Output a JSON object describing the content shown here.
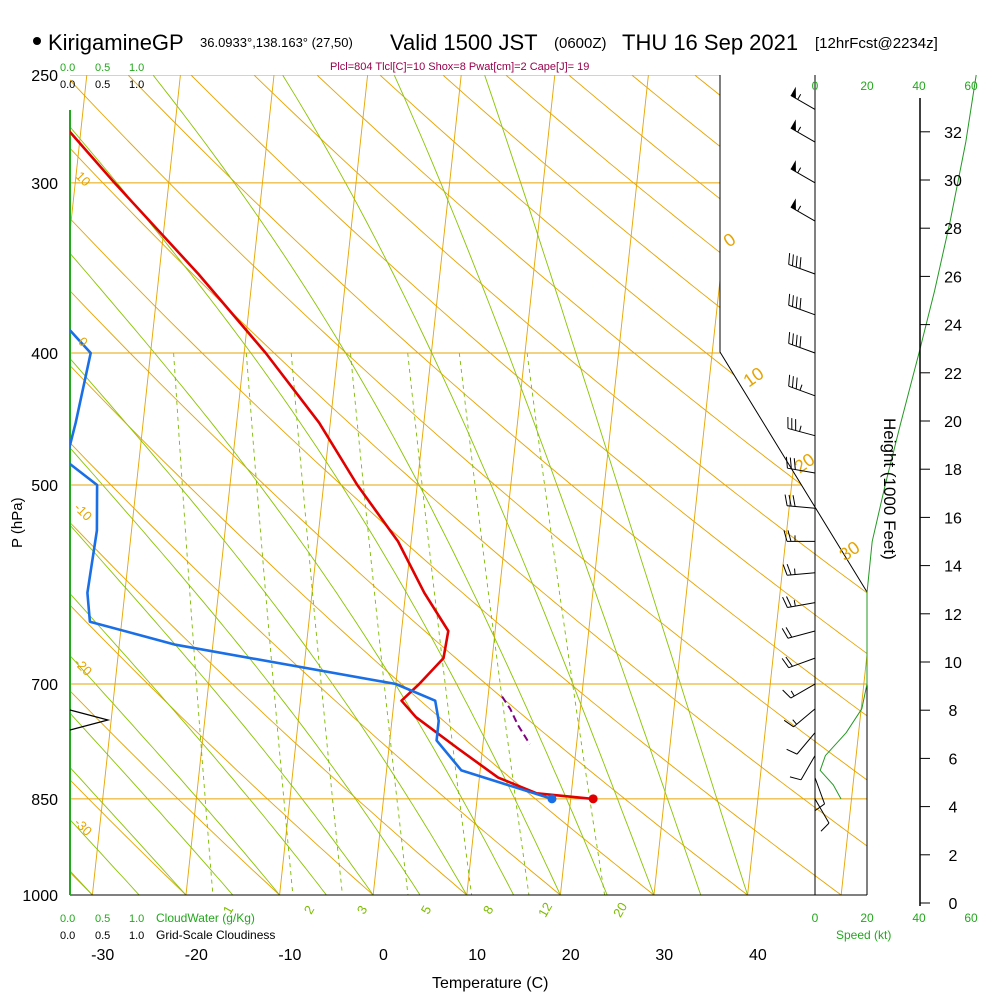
{
  "header": {
    "station": "KirigamineGP",
    "coords": "36.0933°,138.163° (27,50)",
    "valid": "Valid 1500 JST",
    "zulu": "(0600Z)",
    "date": "THU 16 Sep 2021",
    "fcst": "[12hrFcst@2234z]"
  },
  "params": "Plcl=804 Tlcl[C]=10 Shox=8 Pwat[cm]=2 Cape[J]= 19",
  "colors": {
    "temperature": "#e00000",
    "dewpoint": "#1a6fe6",
    "parcel": "#800080",
    "isotherm": "#e6a400",
    "dry_adiabat": "#e6a400",
    "moist_adiabat": "#8ac400",
    "mixing_ratio": "#7dbb00",
    "height_profile": "#229922",
    "cloud_scale": "#22a81c"
  },
  "chart_data": {
    "type": "line",
    "subtype": "skew-T log-P sounding",
    "xlabel": "Temperature (C)",
    "ylabel": "P (hPa)",
    "right_axis_label": "Height (1000 Feet)",
    "x_ticks": [
      "-30",
      "-20",
      "-10",
      "0",
      "10",
      "20",
      "30",
      "40"
    ],
    "x_tick_values": [
      -30,
      -20,
      -10,
      0,
      10,
      20,
      30,
      40
    ],
    "p_ticks": [
      "250",
      "300",
      "400",
      "500",
      "700",
      "850",
      "1000"
    ],
    "p_tick_values": [
      250,
      300,
      400,
      500,
      700,
      850,
      1000
    ],
    "height_ticks": [
      "0",
      "2",
      "4",
      "6",
      "8",
      "10",
      "12",
      "14",
      "16",
      "18",
      "20",
      "22",
      "24",
      "26",
      "28",
      "30",
      "32"
    ],
    "height_tick_values": [
      0,
      2,
      4,
      6,
      8,
      10,
      12,
      14,
      16,
      18,
      20,
      22,
      24,
      26,
      28,
      30,
      32
    ],
    "series": [
      {
        "name": "temperature",
        "points": [
          [
            265,
            -43.5
          ],
          [
            300,
            -35.8
          ],
          [
            350,
            -25.8
          ],
          [
            400,
            -17.7
          ],
          [
            450,
            -11.2
          ],
          [
            500,
            -6.4
          ],
          [
            550,
            -1.4
          ],
          [
            600,
            2.0
          ],
          [
            640,
            5.0
          ],
          [
            670,
            4.8
          ],
          [
            700,
            2.5
          ],
          [
            720,
            0.8
          ],
          [
            740,
            2.5
          ],
          [
            780,
            7.3
          ],
          [
            820,
            12.0
          ],
          [
            842,
            16.3
          ],
          [
            850,
            22.4
          ]
        ]
      },
      {
        "name": "dewpoint",
        "points": [
          [
            265,
            -52.5
          ],
          [
            280,
            -53.4
          ],
          [
            300,
            -54.6
          ],
          [
            330,
            -51.5
          ],
          [
            350,
            -47.5
          ],
          [
            380,
            -39.7
          ],
          [
            400,
            -36.4
          ],
          [
            450,
            -37.2
          ],
          [
            480,
            -37.8
          ],
          [
            500,
            -34.2
          ],
          [
            540,
            -33.7
          ],
          [
            600,
            -34.0
          ],
          [
            630,
            -33.4
          ],
          [
            655,
            -24.0
          ],
          [
            700,
            0.0
          ],
          [
            720,
            4.4
          ],
          [
            745,
            5.0
          ],
          [
            770,
            5.0
          ],
          [
            810,
            8.0
          ],
          [
            850,
            18.0
          ]
        ]
      },
      {
        "name": "parcel",
        "points": [
          [
            715,
            11.5
          ],
          [
            730,
            12.5
          ],
          [
            750,
            13.5
          ],
          [
            775,
            15.0
          ]
        ]
      }
    ],
    "surface_temperature": 22.4,
    "surface_dewpoint": 18.0,
    "surface_pressure": 850,
    "isotherm_labels": [
      "0",
      "10",
      "20",
      "30",
      "-10",
      "-20",
      "-30"
    ],
    "dry_adiabat_labels": [
      "10",
      "0",
      "-10",
      "-20",
      "-30"
    ],
    "mixing_ratio_labels": [
      "1",
      "2",
      "3",
      "5",
      "8",
      "12",
      "20"
    ],
    "wind_barbs": [
      {
        "p": 265,
        "speed_kt": 55,
        "dir_deg": 300
      },
      {
        "p": 280,
        "speed_kt": 55,
        "dir_deg": 300
      },
      {
        "p": 300,
        "speed_kt": 55,
        "dir_deg": 300
      },
      {
        "p": 320,
        "speed_kt": 55,
        "dir_deg": 300
      },
      {
        "p": 350,
        "speed_kt": 40,
        "dir_deg": 290
      },
      {
        "p": 375,
        "speed_kt": 40,
        "dir_deg": 290
      },
      {
        "p": 400,
        "speed_kt": 40,
        "dir_deg": 290
      },
      {
        "p": 430,
        "speed_kt": 35,
        "dir_deg": 290
      },
      {
        "p": 460,
        "speed_kt": 35,
        "dir_deg": 285
      },
      {
        "p": 490,
        "speed_kt": 30,
        "dir_deg": 280
      },
      {
        "p": 520,
        "speed_kt": 30,
        "dir_deg": 275
      },
      {
        "p": 550,
        "speed_kt": 25,
        "dir_deg": 270
      },
      {
        "p": 580,
        "speed_kt": 25,
        "dir_deg": 265
      },
      {
        "p": 610,
        "speed_kt": 25,
        "dir_deg": 260
      },
      {
        "p": 640,
        "speed_kt": 20,
        "dir_deg": 255
      },
      {
        "p": 670,
        "speed_kt": 20,
        "dir_deg": 250
      },
      {
        "p": 700,
        "speed_kt": 15,
        "dir_deg": 240
      },
      {
        "p": 730,
        "speed_kt": 15,
        "dir_deg": 230
      },
      {
        "p": 760,
        "speed_kt": 10,
        "dir_deg": 220
      },
      {
        "p": 790,
        "speed_kt": 10,
        "dir_deg": 210
      },
      {
        "p": 820,
        "speed_kt": 10,
        "dir_deg": 160
      },
      {
        "p": 850,
        "speed_kt": 10,
        "dir_deg": 150
      }
    ],
    "wind_speed_profile": [
      [
        250,
        62
      ],
      [
        280,
        58
      ],
      [
        320,
        52
      ],
      [
        360,
        46
      ],
      [
        400,
        40
      ],
      [
        450,
        33
      ],
      [
        500,
        27
      ],
      [
        550,
        22
      ],
      [
        600,
        20
      ],
      [
        640,
        20
      ],
      [
        670,
        20
      ],
      [
        700,
        20
      ],
      [
        730,
        18
      ],
      [
        760,
        12
      ],
      [
        790,
        4
      ],
      [
        810,
        2
      ],
      [
        830,
        7
      ],
      [
        850,
        10
      ]
    ],
    "speed_axis_label": "Speed (kt)",
    "speed_ticks": [
      "0",
      "20",
      "40",
      "60"
    ],
    "cloud_water_label": "CloudWater (g/Kg)",
    "cloudiness_label": "Grid-Scale Cloudiness",
    "cloud_ticks": [
      "0.0",
      "0.5",
      "1.0"
    ]
  }
}
